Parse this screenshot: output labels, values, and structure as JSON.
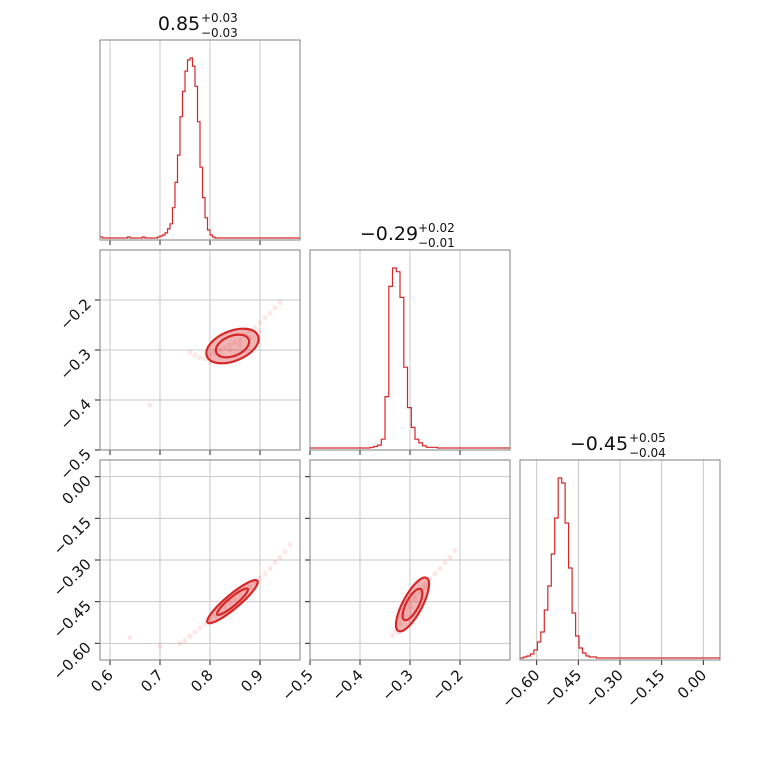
{
  "chart_data": {
    "type": "corner",
    "colors": {
      "series": "#d62728",
      "frame": "#808080",
      "grid": "#c8c8c8"
    },
    "parameters": [
      {
        "title_value": "0.85",
        "title_plus": "+0.03",
        "title_minus": "−0.03",
        "median": 0.85,
        "plus": 0.03,
        "minus": 0.03
      },
      {
        "title_value": "−0.29",
        "title_plus": "+0.02",
        "title_minus": "−0.01",
        "median": -0.29,
        "plus": 0.02,
        "minus": 0.01
      },
      {
        "title_value": "−0.45",
        "title_plus": "+0.05",
        "title_minus": "−0.04",
        "median": -0.45,
        "plus": 0.05,
        "minus": 0.04
      }
    ],
    "ticks": {
      "p0": {
        "values": [
          0.6,
          0.7,
          0.8,
          0.9
        ],
        "labels": [
          "0.6",
          "0.7",
          "0.8",
          "0.9"
        ],
        "lim": [
          0.58,
          0.98
        ]
      },
      "p1": {
        "values": [
          -0.5,
          -0.4,
          -0.3,
          -0.2
        ],
        "labels": [
          "−0.5",
          "−0.4",
          "−0.3",
          "−0.2"
        ],
        "lim": [
          -0.5,
          -0.1
        ]
      },
      "p2": {
        "values": [
          -0.6,
          -0.45,
          -0.3,
          -0.15,
          0.0
        ],
        "labels": [
          "−0.60",
          "−0.45",
          "−0.30",
          "−0.15",
          "0.00"
        ],
        "lim": [
          -0.66,
          0.06
        ]
      }
    },
    "hist_p0": {
      "edges_start": 0.58,
      "bin_width": 0.005,
      "counts": [
        1,
        0,
        0,
        0,
        0,
        0,
        0,
        0,
        0,
        0,
        0,
        1,
        0,
        0,
        0,
        0,
        0,
        1,
        0,
        0,
        0,
        0,
        0,
        1,
        2,
        3,
        5,
        9,
        14,
        30,
        55,
        82,
        120,
        145,
        165,
        176,
        178,
        170,
        150,
        115,
        70,
        40,
        20,
        8,
        3,
        1,
        0,
        0,
        0,
        0,
        0,
        0,
        0,
        0,
        0,
        0,
        0,
        0,
        0,
        0,
        0,
        0,
        0,
        0,
        0,
        0,
        0,
        0,
        0,
        0,
        0,
        0,
        0,
        0,
        0,
        0,
        0,
        0,
        0,
        0
      ]
    },
    "hist_p1": {
      "edges_start": -0.5,
      "bin_width": 0.0075,
      "counts": [
        0,
        0,
        0,
        0,
        0,
        0,
        0,
        0,
        0,
        0,
        0,
        0,
        0,
        0,
        0,
        0,
        1,
        2,
        4,
        12,
        70,
        220,
        245,
        240,
        205,
        110,
        55,
        28,
        12,
        7,
        3,
        1,
        1,
        1,
        0,
        0,
        0,
        0,
        0,
        0,
        0,
        0,
        0,
        0,
        0,
        0,
        0,
        0,
        0,
        0,
        0,
        0,
        0,
        0
      ]
    },
    "hist_p2": {
      "edges_start": -0.66,
      "bin_width": 0.0125,
      "counts": [
        0,
        1,
        2,
        4,
        8,
        16,
        26,
        48,
        72,
        104,
        140,
        180,
        175,
        135,
        90,
        45,
        22,
        10,
        5,
        2,
        1,
        1,
        0,
        0,
        0,
        0,
        0,
        0,
        0,
        0,
        0,
        0,
        0,
        0,
        0,
        0,
        0,
        0,
        0,
        0,
        0,
        0,
        0,
        0,
        0,
        0,
        0,
        0,
        0,
        0,
        0,
        0,
        0,
        0,
        0,
        0,
        0,
        0
      ]
    },
    "scatter_p0_p1": {
      "points": [
        [
          0.76,
          -0.305
        ],
        [
          0.77,
          -0.31
        ],
        [
          0.78,
          -0.315
        ],
        [
          0.79,
          -0.318
        ],
        [
          0.8,
          -0.31
        ],
        [
          0.81,
          -0.305
        ],
        [
          0.82,
          -0.3
        ],
        [
          0.83,
          -0.295
        ],
        [
          0.84,
          -0.29
        ],
        [
          0.85,
          -0.285
        ],
        [
          0.86,
          -0.28
        ],
        [
          0.87,
          -0.27
        ],
        [
          0.88,
          -0.262
        ],
        [
          0.89,
          -0.255
        ],
        [
          0.9,
          -0.245
        ],
        [
          0.91,
          -0.235
        ],
        [
          0.92,
          -0.226
        ],
        [
          0.93,
          -0.215
        ],
        [
          0.94,
          -0.205
        ],
        [
          0.68,
          -0.41
        ],
        [
          0.8,
          -0.325
        ],
        [
          0.82,
          -0.312
        ],
        [
          0.84,
          -0.3
        ],
        [
          0.86,
          -0.29
        ],
        [
          0.88,
          -0.275
        ],
        [
          0.9,
          -0.262
        ]
      ],
      "contours": [
        {
          "cx": 0.845,
          "cy": -0.292,
          "rx": 0.055,
          "ry": 0.012,
          "angle": -22
        },
        {
          "cx": 0.845,
          "cy": -0.292,
          "rx": 0.035,
          "ry": 0.008,
          "angle": -22
        }
      ]
    },
    "scatter_p0_p2": {
      "points": [
        [
          0.74,
          -0.6
        ],
        [
          0.75,
          -0.59
        ],
        [
          0.76,
          -0.575
        ],
        [
          0.77,
          -0.56
        ],
        [
          0.78,
          -0.545
        ],
        [
          0.79,
          -0.53
        ],
        [
          0.8,
          -0.515
        ],
        [
          0.81,
          -0.5
        ],
        [
          0.82,
          -0.485
        ],
        [
          0.83,
          -0.47
        ],
        [
          0.84,
          -0.455
        ],
        [
          0.85,
          -0.44
        ],
        [
          0.86,
          -0.425
        ],
        [
          0.87,
          -0.41
        ],
        [
          0.88,
          -0.395
        ],
        [
          0.89,
          -0.38
        ],
        [
          0.9,
          -0.365
        ],
        [
          0.91,
          -0.35
        ],
        [
          0.92,
          -0.33
        ],
        [
          0.93,
          -0.31
        ],
        [
          0.94,
          -0.29
        ],
        [
          0.95,
          -0.27
        ],
        [
          0.96,
          -0.245
        ],
        [
          0.64,
          -0.58
        ],
        [
          0.7,
          -0.61
        ]
      ],
      "contours": [
        {
          "cx": 0.845,
          "cy": -0.45,
          "rx": 0.065,
          "ry": 0.01,
          "angle": -40
        },
        {
          "cx": 0.845,
          "cy": -0.45,
          "rx": 0.04,
          "ry": 0.006,
          "angle": -40
        }
      ]
    },
    "scatter_p1_p2": {
      "points": [
        [
          -0.33,
          -0.55
        ],
        [
          -0.32,
          -0.53
        ],
        [
          -0.32,
          -0.51
        ],
        [
          -0.31,
          -0.5
        ],
        [
          -0.31,
          -0.48
        ],
        [
          -0.3,
          -0.47
        ],
        [
          -0.3,
          -0.45
        ],
        [
          -0.29,
          -0.44
        ],
        [
          -0.29,
          -0.43
        ],
        [
          -0.28,
          -0.41
        ],
        [
          -0.27,
          -0.39
        ],
        [
          -0.26,
          -0.37
        ],
        [
          -0.25,
          -0.35
        ],
        [
          -0.24,
          -0.33
        ],
        [
          -0.23,
          -0.31
        ],
        [
          -0.22,
          -0.29
        ],
        [
          -0.21,
          -0.265
        ],
        [
          -0.335,
          -0.57
        ],
        [
          -0.325,
          -0.56
        ],
        [
          -0.28,
          -0.42
        ],
        [
          -0.27,
          -0.4
        ],
        [
          -0.31,
          -0.46
        ],
        [
          -0.32,
          -0.49
        ]
      ],
      "contours": [
        {
          "cx": -0.295,
          "cy": -0.46,
          "rx": 0.06,
          "ry": 0.014,
          "angle": -62
        },
        {
          "cx": -0.295,
          "cy": -0.46,
          "rx": 0.035,
          "ry": 0.009,
          "angle": -62
        }
      ]
    }
  }
}
